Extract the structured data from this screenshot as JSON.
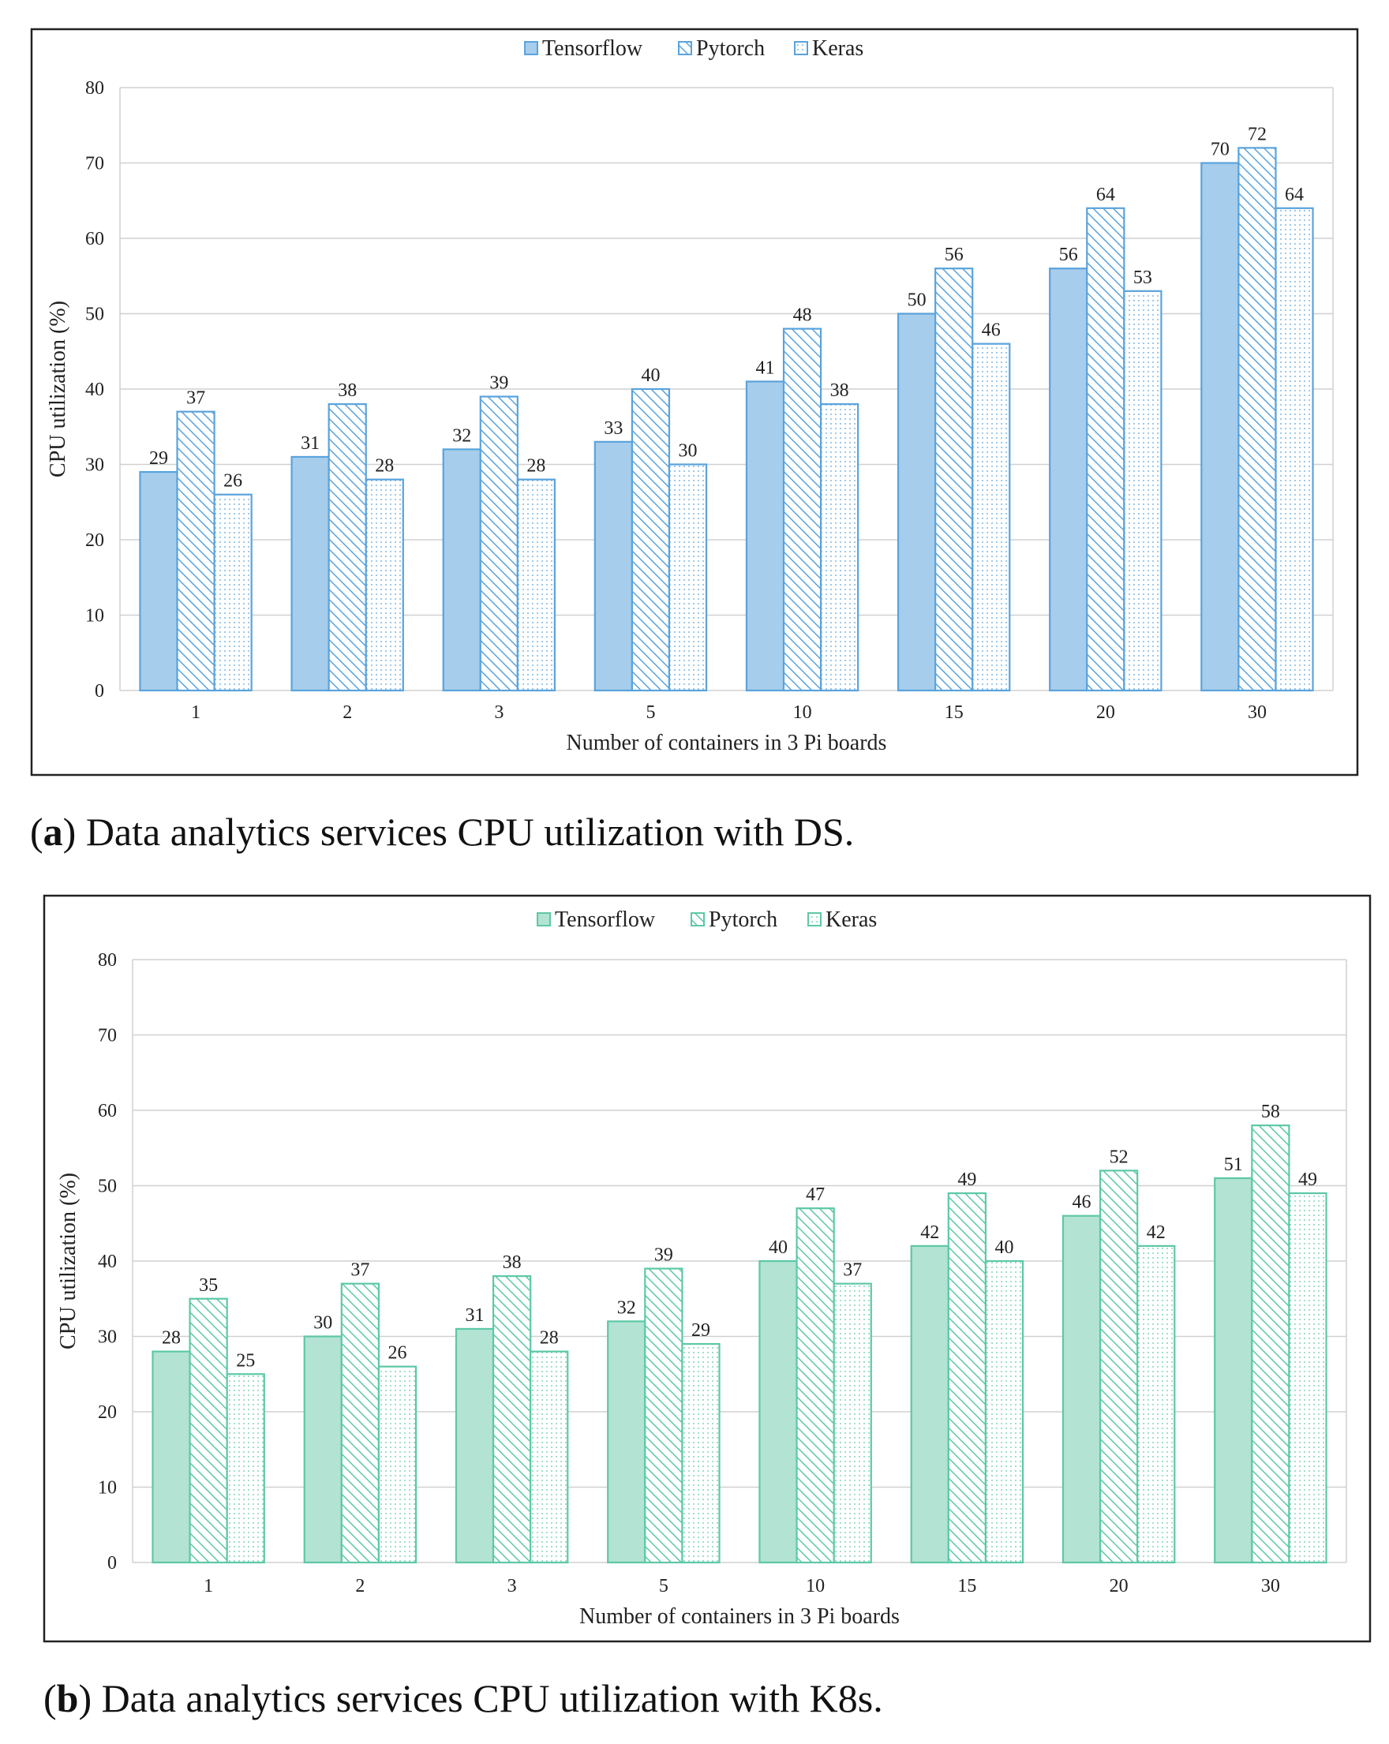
{
  "chart_data": [
    {
      "type": "bar",
      "panel": "a",
      "caption_letter": "a",
      "caption_text": "Data analytics services CPU utilization with DS.",
      "categories": [
        "1",
        "2",
        "3",
        "5",
        "10",
        "15",
        "20",
        "30"
      ],
      "series": [
        {
          "name": "Tensorflow",
          "values": [
            29,
            31,
            32,
            33,
            41,
            50,
            56,
            70
          ],
          "labels": [
            "29",
            "31",
            "32",
            "33",
            "41",
            "50",
            "56",
            "70"
          ]
        },
        {
          "name": "Pytorch",
          "values": [
            37,
            38,
            39,
            40,
            48,
            56,
            64,
            72
          ],
          "labels": [
            "37",
            "38",
            "39",
            "40",
            "48",
            "56",
            "64",
            "72"
          ]
        },
        {
          "name": "Keras",
          "values": [
            26,
            28,
            28,
            30,
            38,
            46,
            53,
            64
          ],
          "labels": [
            "26",
            "28",
            "28",
            "30",
            "38",
            "46",
            "53",
            "64"
          ]
        }
      ],
      "xlabel": "Number of containers in 3 Pi boards",
      "ylabel": "CPU utilization (%)",
      "ylim": [
        0,
        80
      ],
      "yticks": [
        "0",
        "10",
        "20",
        "30",
        "40",
        "50",
        "60",
        "70",
        "80"
      ],
      "legend_position": "top-center",
      "grid": true,
      "colors": {
        "fill": "#a7cdec",
        "stroke": "#5aa3dc"
      }
    },
    {
      "type": "bar",
      "panel": "b",
      "caption_letter": "b",
      "caption_text": "Data analytics services CPU utilization with K8s.",
      "categories": [
        "1",
        "2",
        "3",
        "5",
        "10",
        "15",
        "20",
        "30"
      ],
      "series": [
        {
          "name": "Tensorflow",
          "values": [
            28,
            30,
            31,
            32,
            40,
            42,
            46,
            51
          ],
          "labels": [
            "28",
            "30",
            "31",
            "32",
            "40",
            "42",
            "46",
            "51"
          ]
        },
        {
          "name": "Pytorch",
          "values": [
            35,
            37,
            38,
            39,
            47,
            49,
            52,
            58
          ],
          "labels": [
            "35",
            "37",
            "38",
            "39",
            "47",
            "49",
            "52",
            "58"
          ]
        },
        {
          "name": "Keras",
          "values": [
            25,
            26,
            28,
            29,
            37,
            40,
            42,
            49
          ],
          "labels": [
            "25",
            "26",
            "28",
            "29",
            "37",
            "40",
            "42",
            "49"
          ]
        }
      ],
      "xlabel": "Number of containers in 3 Pi boards",
      "ylabel": "CPU utilization (%)",
      "ylim": [
        0,
        80
      ],
      "yticks": [
        "0",
        "10",
        "20",
        "30",
        "40",
        "50",
        "60",
        "70",
        "80"
      ],
      "legend_position": "top-center",
      "grid": true,
      "colors": {
        "fill": "#b3e3d3",
        "stroke": "#5dc8a7"
      }
    }
  ]
}
